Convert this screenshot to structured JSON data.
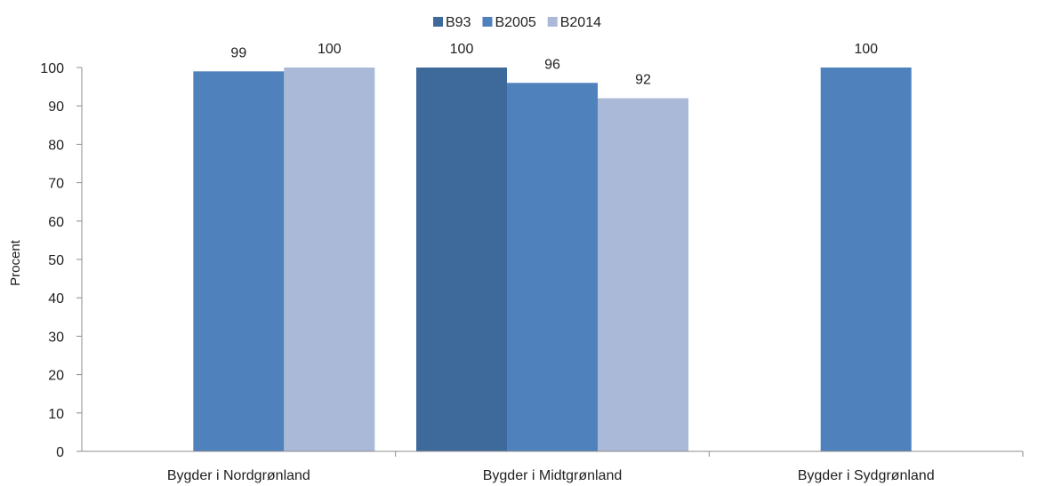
{
  "chart_data": {
    "type": "bar",
    "categories": [
      "Bygder i Nordgrønland",
      "Bygder i Midtgrønland",
      "Bygder i Sydgrønland"
    ],
    "series": [
      {
        "name": "B93",
        "color": "#3E6A9B",
        "values": [
          null,
          100,
          null
        ]
      },
      {
        "name": "B2005",
        "color": "#4F81BD",
        "values": [
          99,
          96,
          100
        ]
      },
      {
        "name": "B2014",
        "color": "#AAB9D7",
        "values": [
          100,
          92,
          null
        ]
      }
    ],
    "ylabel": "Procent",
    "ylim": [
      0,
      100
    ],
    "yticks": [
      "0",
      "10",
      "20",
      "30",
      "40",
      "50",
      "60",
      "70",
      "80",
      "90",
      "100"
    ],
    "grid": false,
    "legend_position": "top-center",
    "data_labels": true
  }
}
